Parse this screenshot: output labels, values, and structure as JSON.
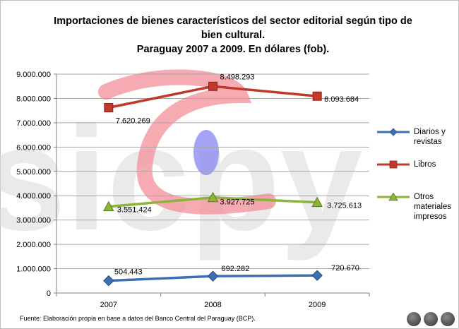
{
  "title_line1": "Importaciones  de bienes característicos  del sector editorial según tipo de",
  "title_line2": "bien cultural.",
  "title_line3": "Paraguay  2007 a 2009. En dólares (fob).",
  "source": "Fuente:  Elaboración propia en base a datos del Banco Central del Paraguay (BCP).",
  "watermark": "sicpy",
  "chart_data": {
    "type": "line",
    "categories": [
      "2007",
      "2008",
      "2009"
    ],
    "ylim": [
      0,
      9000000
    ],
    "yticks": [
      0,
      1000000,
      2000000,
      3000000,
      4000000,
      5000000,
      6000000,
      7000000,
      8000000,
      9000000
    ],
    "ytick_labels": [
      "0",
      "1.000.000",
      "2.000.000",
      "3.000.000",
      "4.000.000",
      "5.000.000",
      "6.000.000",
      "7.000.000",
      "8.000.000",
      "9.000.000"
    ],
    "grid": true,
    "legend_position": "right",
    "series": [
      {
        "name": "Diarios y revistas",
        "values": [
          504443,
          692282,
          720670
        ],
        "labels": [
          "504.443",
          "692.282",
          "720.670"
        ],
        "color": "#3d6fb6",
        "marker": "diamond"
      },
      {
        "name": "Libros",
        "values": [
          7620269,
          8498293,
          8093684
        ],
        "labels": [
          "7.620.269",
          "8.498.293",
          "8.093.684"
        ],
        "color": "#c0392b",
        "marker": "square"
      },
      {
        "name": "Otros materiales impresos",
        "values": [
          3551424,
          3927725,
          3725613
        ],
        "labels": [
          "3.551.424",
          "3.927.725",
          "3.725.613"
        ],
        "color": "#8db33a",
        "marker": "triangle"
      }
    ]
  }
}
